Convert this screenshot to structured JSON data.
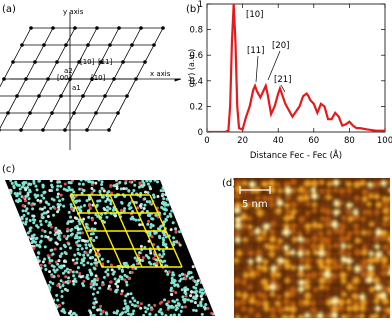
{
  "panel_labels": [
    "(a)",
    "(b)",
    "(c)",
    "(d)"
  ],
  "diagram": {
    "y_axis": "y axis",
    "x_axis": "x axis",
    "dir_10_top": "[10]",
    "dir_11": "[11]",
    "dir_00": "[00]",
    "dir_10_right": "[10]",
    "a2": "a2",
    "a1": "a1"
  },
  "chart_data": {
    "type": "line",
    "ylabel": "g(r) (a.u.)",
    "xlabel": "Distance Fec - Fec (Å)",
    "xlim": [
      0,
      100
    ],
    "xticks": [
      0,
      20,
      40,
      60,
      80,
      100
    ],
    "ylim": [
      0,
      1
    ],
    "yticks": [
      0,
      0.2,
      0.4,
      0.6,
      0.8,
      1
    ],
    "annotations": [
      "[10]",
      "[11]",
      "[20]",
      "[21]"
    ],
    "series": [
      {
        "color": "#e41a1c",
        "x": [
          0,
          10,
          12,
          13,
          14,
          15,
          16,
          17,
          18,
          20,
          22,
          24,
          26,
          27,
          28,
          30,
          32,
          33,
          34,
          36,
          38,
          40,
          41,
          42,
          44,
          46,
          48,
          50,
          52,
          54,
          56,
          57,
          58,
          60,
          62,
          64,
          66,
          68,
          70,
          72,
          74,
          76,
          78,
          80,
          82,
          84,
          86,
          90,
          95,
          100
        ],
        "values": [
          0,
          0,
          0.01,
          0.2,
          0.7,
          1,
          0.7,
          0.2,
          0.03,
          0.02,
          0.12,
          0.2,
          0.33,
          0.36,
          0.32,
          0.27,
          0.33,
          0.36,
          0.3,
          0.14,
          0.2,
          0.3,
          0.34,
          0.3,
          0.22,
          0.17,
          0.12,
          0.16,
          0.2,
          0.28,
          0.3,
          0.28,
          0.25,
          0.22,
          0.15,
          0.22,
          0.2,
          0.1,
          0.1,
          0.15,
          0.12,
          0.05,
          0.06,
          0.08,
          0.05,
          0.03,
          0.03,
          0.02,
          0.01,
          0.01
        ]
      }
    ]
  },
  "image_d": {
    "scale_label": "5 nm"
  }
}
